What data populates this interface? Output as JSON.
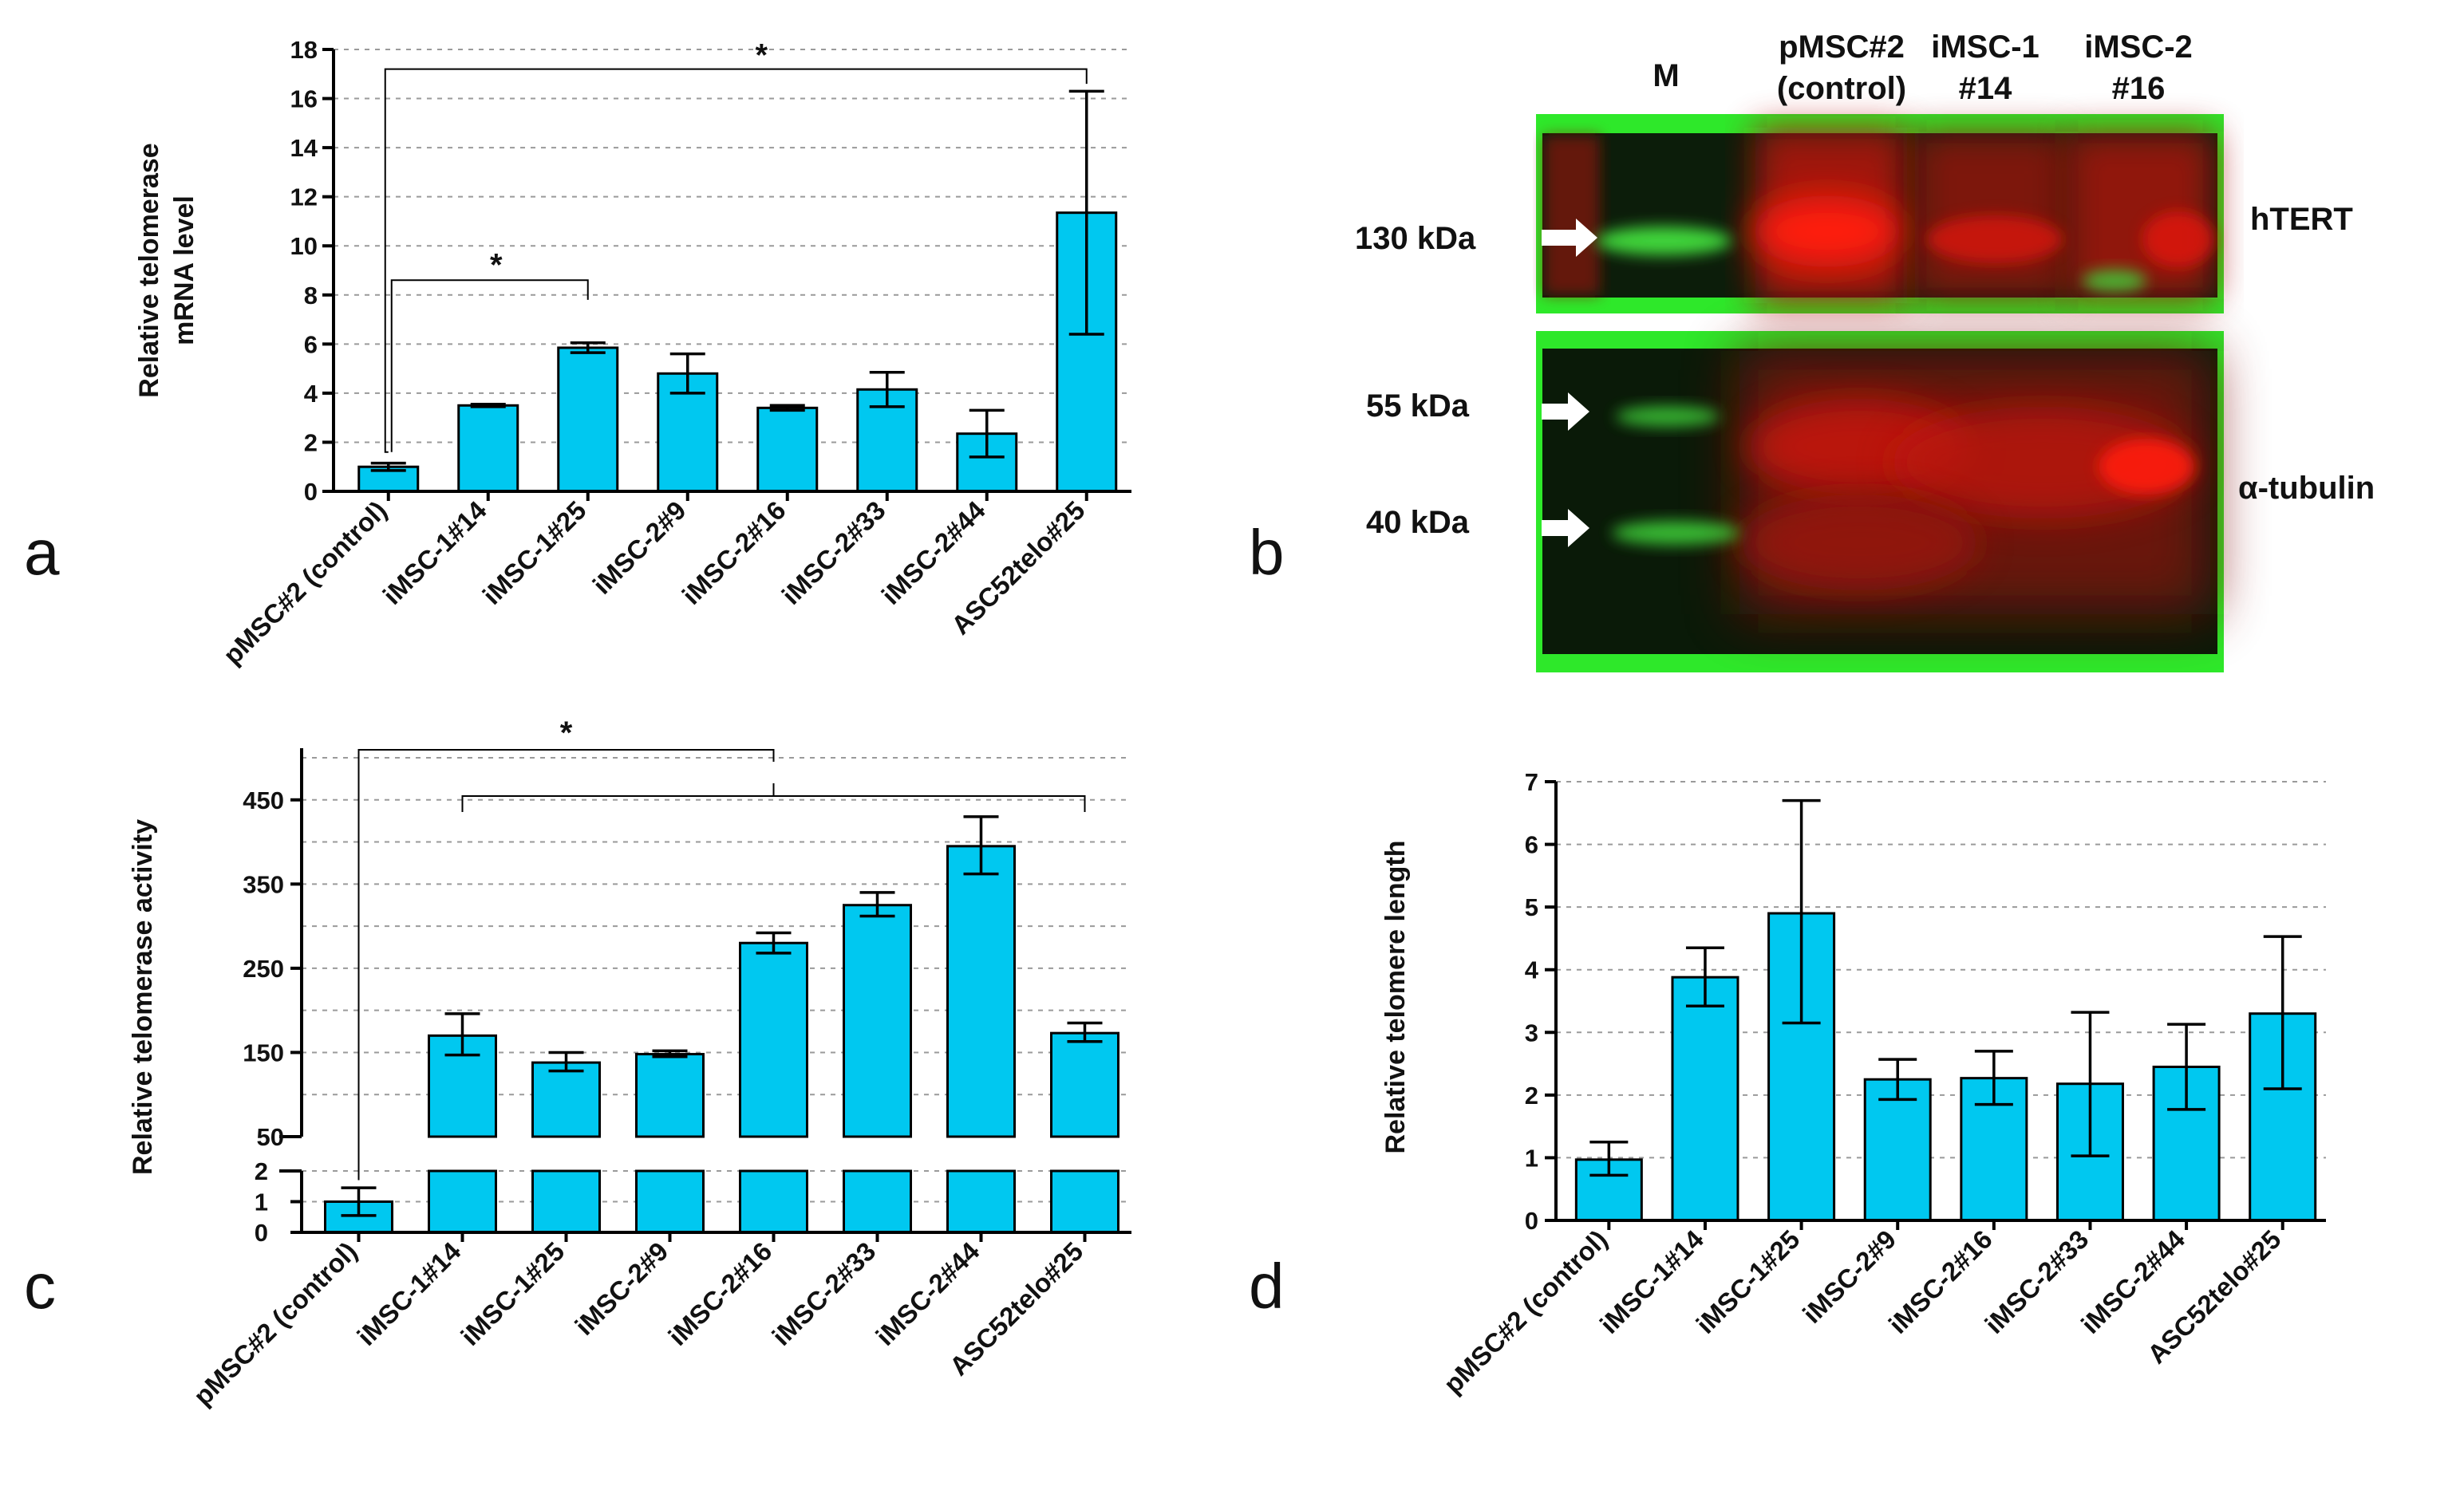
{
  "categories": [
    "pMSC#2 (control)",
    "iMSC-1#14",
    "iMSC-1#25",
    "iMSC-2#9",
    "iMSC-2#16",
    "iMSC-2#33",
    "iMSC-2#44",
    "ASC52telo#25"
  ],
  "chart_data": [
    {
      "id": "a",
      "type": "bar",
      "panel_label": "a",
      "ylabel_line1": "Relative telomerase",
      "ylabel_line2": "mRNA level",
      "ylim": [
        0,
        18
      ],
      "yticks": [
        0,
        2,
        4,
        6,
        8,
        10,
        12,
        14,
        16,
        18
      ],
      "values": [
        1.0,
        3.5,
        5.85,
        4.8,
        3.4,
        4.15,
        2.35,
        11.35
      ],
      "err_hi": [
        1.15,
        3.55,
        6.05,
        5.6,
        3.5,
        4.85,
        3.3,
        16.3
      ],
      "err_lo": [
        0.85,
        3.45,
        5.65,
        4.0,
        3.3,
        3.45,
        1.4,
        6.4
      ],
      "significance": [
        "*",
        "*"
      ]
    },
    {
      "id": "c",
      "type": "bar",
      "panel_label": "c",
      "ylabel": "Relative telomerase activity",
      "axis_break": true,
      "lower_ylim": [
        0,
        2
      ],
      "lower_yticks": [
        0,
        1,
        2
      ],
      "upper_ylim": [
        50,
        500
      ],
      "upper_yticks": [
        50,
        150,
        250,
        350,
        450
      ],
      "values": [
        1.0,
        170,
        138,
        148,
        280,
        325,
        395,
        173
      ],
      "err_hi": [
        1.45,
        196,
        150,
        152,
        292,
        340,
        430,
        185
      ],
      "err_lo": [
        0.55,
        147,
        128,
        145,
        268,
        312,
        362,
        163
      ],
      "significance": [
        "*"
      ]
    },
    {
      "id": "d",
      "type": "bar",
      "panel_label": "d",
      "ylabel": "Relative telomere length",
      "ylim": [
        0,
        7
      ],
      "yticks": [
        0,
        1,
        2,
        3,
        4,
        5,
        6,
        7
      ],
      "values": [
        0.97,
        3.88,
        4.9,
        2.25,
        2.27,
        2.18,
        2.45,
        3.3
      ],
      "err_hi": [
        1.25,
        4.35,
        6.7,
        2.57,
        2.7,
        3.32,
        3.13,
        4.53
      ],
      "err_lo": [
        0.72,
        3.42,
        3.15,
        1.93,
        1.85,
        1.03,
        1.77,
        2.1
      ]
    }
  ],
  "blot": {
    "panel_label": "b",
    "lanes": [
      {
        "line1": "M",
        "line2": ""
      },
      {
        "line1": "pMSC#2",
        "line2": "(control)"
      },
      {
        "line1": "iMSC-1",
        "line2": "#14"
      },
      {
        "line1": "iMSC-2",
        "line2": "#16"
      }
    ],
    "markers": [
      "130 kDa",
      "55 kDa",
      "40 kDa"
    ],
    "targets": [
      "hTERT",
      "α-tubulin"
    ],
    "colors": {
      "band_red": "#e8120e",
      "band_green": "#3fd43a",
      "background": "#0a1a08"
    }
  },
  "colors": {
    "bar": "#00c8f0",
    "axis": "#000000",
    "grid": "#9a9a9a"
  }
}
